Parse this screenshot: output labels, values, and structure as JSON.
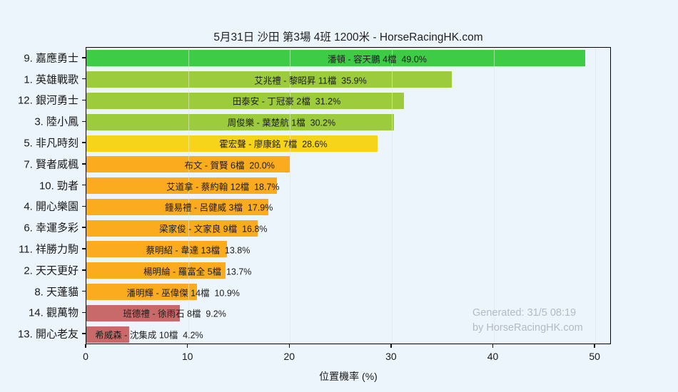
{
  "page": {
    "background_color": "#edf5fc"
  },
  "chart_data": {
    "type": "bar",
    "orientation": "horizontal",
    "title": "5月31日  沙田  第3場  4班  1200米 - HorseRacingHK.com",
    "xlabel": "位置機率 (%)",
    "xlim": [
      0,
      51.6
    ],
    "xticks": [
      0,
      10,
      20,
      30,
      40,
      50
    ],
    "grid": "vertical",
    "legend": "none",
    "categories": [
      "9. 嘉應勇士",
      "1. 英雄戰歌",
      "12. 銀河勇士",
      "3. 陸小鳳",
      "5. 非凡時刻",
      "7. 賢者威楓",
      "10. 勁者",
      "4. 開心樂園",
      "6. 幸運多彩",
      "11. 祥勝力駒",
      "2. 天天更好",
      "8. 天蓬貓",
      "14. 觀萬物",
      "13. 開心老友"
    ],
    "series": [
      {
        "name": "位置機率 (%)",
        "values": [
          49.0,
          35.9,
          31.2,
          30.2,
          28.6,
          20.0,
          18.7,
          17.9,
          16.8,
          13.8,
          13.7,
          10.9,
          9.2,
          4.2
        ]
      }
    ],
    "bars": [
      {
        "horse": "9. 嘉應勇士",
        "label": "潘頓 - 容天鵬 4檔  49.0%",
        "jockey_trainer": "潘頓 - 容天鵬",
        "gate": "4檔",
        "value": 49.0,
        "color": "#3ecc47"
      },
      {
        "horse": "1. 英雄戰歌",
        "label": "艾兆禮 - 黎昭昇 11檔  35.9%",
        "jockey_trainer": "艾兆禮 - 黎昭昇",
        "gate": "11檔",
        "value": 35.9,
        "color": "#9ccb3c"
      },
      {
        "horse": "12. 銀河勇士",
        "label": "田泰安 - 丁冠豪 2檔  31.2%",
        "jockey_trainer": "田泰安 - 丁冠豪",
        "gate": "2檔",
        "value": 31.2,
        "color": "#9ccb3c"
      },
      {
        "horse": "3. 陸小鳳",
        "label": "周俊樂 - 葉楚航 1檔  30.2%",
        "jockey_trainer": "周俊樂 - 葉楚航",
        "gate": "1檔",
        "value": 30.2,
        "color": "#9ccb3c"
      },
      {
        "horse": "5. 非凡時刻",
        "label": "霍宏聲 - 廖康銘 7檔  28.6%",
        "jockey_trainer": "霍宏聲 - 廖康銘",
        "gate": "7檔",
        "value": 28.6,
        "color": "#f6d41a"
      },
      {
        "horse": "7. 賢者威楓",
        "label": "布文 - 賀賢 6檔  20.0%",
        "jockey_trainer": "布文 - 賀賢",
        "gate": "6檔",
        "value": 20.0,
        "color": "#faab1e"
      },
      {
        "horse": "10. 勁者",
        "label": "艾道拿 - 蔡約翰 12檔  18.7%",
        "jockey_trainer": "艾道拿 - 蔡約翰",
        "gate": "12檔",
        "value": 18.7,
        "color": "#faab1e"
      },
      {
        "horse": "4. 開心樂園",
        "label": "鍾易禮 - 呂健威 3檔  17.9%",
        "jockey_trainer": "鍾易禮 - 呂健威",
        "gate": "3檔",
        "value": 17.9,
        "color": "#faab1e"
      },
      {
        "horse": "6. 幸運多彩",
        "label": "梁家俊 - 文家良 9檔  16.8%",
        "jockey_trainer": "梁家俊 - 文家良",
        "gate": "9檔",
        "value": 16.8,
        "color": "#faab1e"
      },
      {
        "horse": "11. 祥勝力駒",
        "label": "蔡明紹 - 韋達 13檔  13.8%",
        "jockey_trainer": "蔡明紹 - 韋達",
        "gate": "13檔",
        "value": 13.8,
        "color": "#faab1e"
      },
      {
        "horse": "2. 天天更好",
        "label": "楊明綸 - 羅富全 5檔  13.7%",
        "jockey_trainer": "楊明綸 - 羅富全",
        "gate": "5檔",
        "value": 13.7,
        "color": "#faab1e"
      },
      {
        "horse": "8. 天蓬貓",
        "label": "潘明輝 - 巫偉傑 14檔  10.9%",
        "jockey_trainer": "潘明輝 - 巫偉傑",
        "gate": "14檔",
        "value": 10.9,
        "color": "#faab1e"
      },
      {
        "horse": "14. 觀萬物",
        "label": "班德禮 - 徐雨石 8檔  9.2%",
        "jockey_trainer": "班德禮 - 徐雨石",
        "gate": "8檔",
        "value": 9.2,
        "color": "#c96a6a"
      },
      {
        "horse": "13. 開心老友",
        "label": "希威森 - 沈集成 10檔  4.2%",
        "jockey_trainer": "希威森 - 沈集成",
        "gate": "10檔",
        "value": 4.2,
        "color": "#c96a6a"
      }
    ],
    "colors": {
      "green": "#3ecc47",
      "yellow_green": "#9ccb3c",
      "yellow": "#f6d41a",
      "orange": "#faab1e",
      "rose": "#c96a6a"
    }
  },
  "watermark": {
    "line1": "Generated: 31/5 08:19",
    "line2": "by HorseRacingHK.com"
  }
}
